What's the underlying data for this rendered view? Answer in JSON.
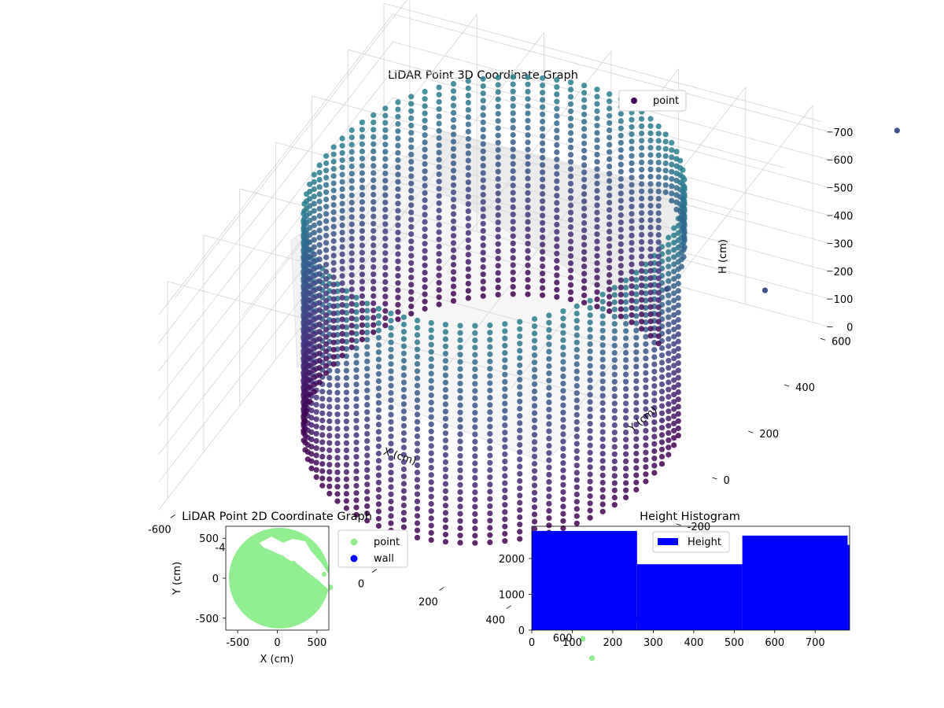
{
  "chart_data": [
    {
      "type": "scatter",
      "title": "LiDAR Point 3D Coordinate Graph",
      "xlabel": "X (cm)",
      "ylabel": "Y (cm)",
      "zlabel": "H (cm)",
      "xticks": [
        -600,
        -400,
        -200,
        0,
        200,
        400,
        600
      ],
      "yticks": [
        -600,
        -400,
        -200,
        0,
        200,
        400,
        600
      ],
      "zticks": [
        0,
        100,
        200,
        300,
        400,
        500,
        600,
        700
      ],
      "xlim": [
        -650,
        650
      ],
      "ylim": [
        -650,
        650
      ],
      "zlim": [
        0,
        780
      ],
      "legend": [
        "point"
      ],
      "legend_position": "top-right",
      "colormap": "viridis",
      "colors": {
        "top": "#440154",
        "mid": "#3b528b",
        "low": "#31688e",
        "outlier": "#90ee90"
      },
      "shape": "cylindrical wall of points, radius about 500 cm, heights 0 to 780 cm",
      "grid": true
    },
    {
      "type": "scatter",
      "title": "LiDAR Point 2D Coordinate Graph",
      "xlabel": "X (cm)",
      "ylabel": "Y (cm)",
      "xticks": [
        -500,
        0,
        500
      ],
      "yticks": [
        -500,
        0,
        500
      ],
      "xlim": [
        -650,
        650
      ],
      "ylim": [
        -650,
        650
      ],
      "series": [
        {
          "name": "point",
          "color": "#90ee90"
        },
        {
          "name": "wall",
          "color": "#0000ff"
        }
      ],
      "legend_position": "outside right"
    },
    {
      "type": "bar",
      "title": "Height Histogram",
      "legend": [
        "Height"
      ],
      "legend_position": "upper center",
      "color": "#0000ff",
      "xticks": [
        0,
        100,
        200,
        300,
        400,
        500,
        600,
        700
      ],
      "yticks": [
        0,
        1000,
        2000
      ],
      "xlim": [
        0,
        785
      ],
      "ylim": [
        0,
        2900
      ],
      "bins": [
        {
          "start": 0,
          "end": 260,
          "count": 2770
        },
        {
          "start": 260,
          "end": 520,
          "count": 1840
        },
        {
          "start": 520,
          "end": 780,
          "count": 2640
        },
        {
          "start": 780,
          "end": 785,
          "count": 2380
        }
      ]
    }
  ]
}
